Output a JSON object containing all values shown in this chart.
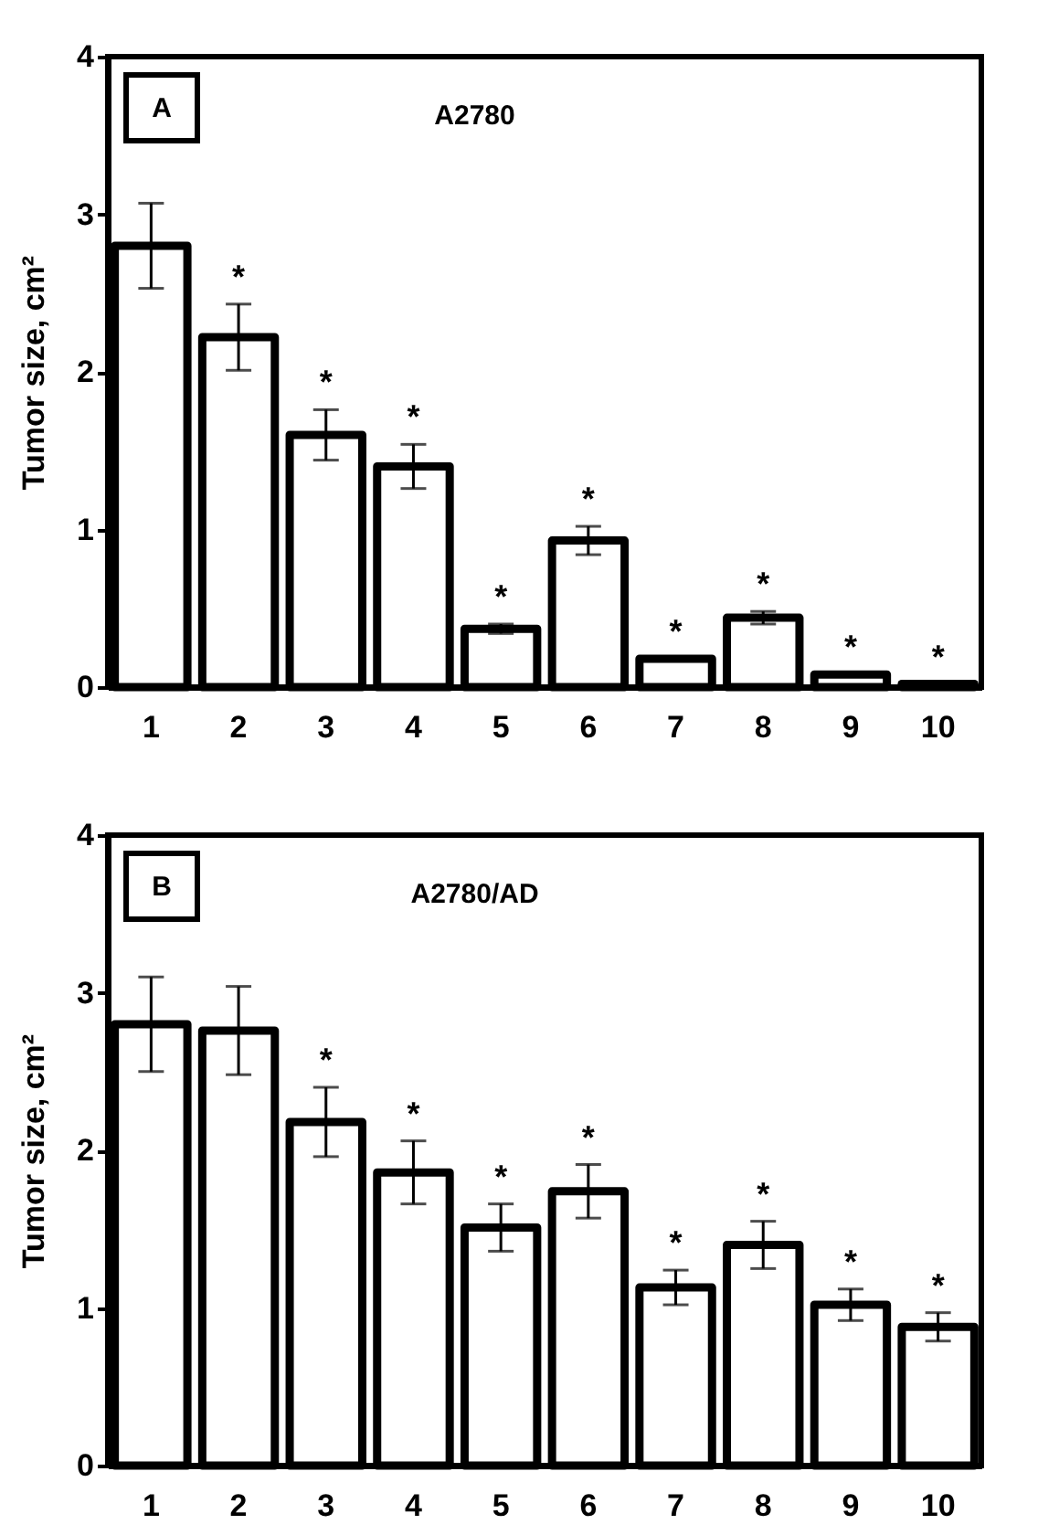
{
  "chart_data": [
    {
      "type": "bar",
      "title": "A2780",
      "ylabel": "Tumor size, cm²",
      "categories": [
        "1",
        "2",
        "3",
        "4",
        "5",
        "6",
        "7",
        "8",
        "9",
        "10"
      ],
      "values": [
        2.8,
        2.22,
        1.6,
        1.4,
        0.37,
        0.93,
        0.18,
        0.44,
        0.08,
        0.02
      ],
      "errors": [
        0.27,
        0.21,
        0.16,
        0.14,
        0.03,
        0.09,
        null,
        0.04,
        null,
        null
      ],
      "color": "#ffffff",
      "ylim": [
        0,
        4
      ],
      "yticks": [
        0,
        1,
        2,
        3,
        4
      ],
      "grid": false,
      "annotations": [
        "A",
        {
          "text": "*",
          "x": "2",
          "y": 2.22
        },
        {
          "text": "*",
          "x": "3",
          "y": 1.6
        },
        {
          "text": "*",
          "x": "4",
          "y": 1.4
        },
        {
          "text": "*",
          "x": "5",
          "y": 0.37
        },
        {
          "text": "*",
          "x": "6",
          "y": 0.93
        },
        {
          "text": "*",
          "x": "7",
          "y": 0.18
        },
        {
          "text": "*",
          "x": "8",
          "y": 0.44
        },
        {
          "text": "*",
          "x": "9",
          "y": 0.08
        },
        {
          "text": "*",
          "x": "10",
          "y": 0.02
        }
      ]
    },
    {
      "type": "bar",
      "title": "A2780/AD",
      "ylabel": "Tumor size, cm²",
      "categories": [
        "1",
        "2",
        "3",
        "4",
        "5",
        "6",
        "7",
        "8",
        "9",
        "10"
      ],
      "values": [
        2.8,
        2.76,
        2.18,
        1.86,
        1.51,
        1.74,
        1.13,
        1.4,
        1.02,
        0.88
      ],
      "errors": [
        0.3,
        0.28,
        0.22,
        0.2,
        0.15,
        0.17,
        0.11,
        0.15,
        0.1,
        0.09
      ],
      "color": "#ffffff",
      "ylim": [
        0,
        4
      ],
      "yticks": [
        0,
        1,
        2,
        3,
        4
      ],
      "grid": false,
      "annotations": [
        "B",
        {
          "text": "*",
          "x": "3",
          "y": 2.18
        },
        {
          "text": "*",
          "x": "4",
          "y": 1.86
        },
        {
          "text": "*",
          "x": "5",
          "y": 1.51
        },
        {
          "text": "*",
          "x": "6",
          "y": 1.74
        },
        {
          "text": "*",
          "x": "7",
          "y": 1.13
        },
        {
          "text": "*",
          "x": "8",
          "y": 1.4
        },
        {
          "text": "*",
          "x": "9",
          "y": 1.02
        },
        {
          "text": "*",
          "x": "10",
          "y": 0.88
        }
      ]
    }
  ]
}
